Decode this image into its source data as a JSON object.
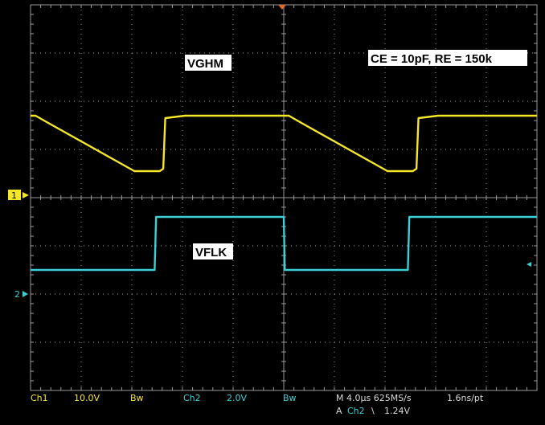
{
  "chart_data": {
    "type": "line",
    "title": "",
    "xlabel": "",
    "ylabel": "",
    "grid": true,
    "x_divisions": 10,
    "y_divisions": 8,
    "x_range_div": [
      0,
      10
    ],
    "y_range_div": [
      -4,
      4
    ],
    "annotations": {
      "vghm": "VGHM",
      "vflk": "VFLK",
      "params": "CE = 10pF, RE = 150k"
    },
    "markers": {
      "ch1": "1",
      "ch2": "2"
    },
    "series": [
      {
        "name": "VGHM",
        "color": "#f5e62a",
        "x_div": [
          0,
          0.1,
          0.35,
          2.05,
          2.55,
          2.62,
          2.66,
          3.05,
          5.0,
          5.1,
          5.35,
          7.05,
          7.55,
          7.62,
          7.66,
          8.05,
          10.0
        ],
        "y_div": [
          1.7,
          1.7,
          1.55,
          0.55,
          0.55,
          0.6,
          1.65,
          1.7,
          1.7,
          1.7,
          1.55,
          0.55,
          0.55,
          0.6,
          1.65,
          1.7,
          1.7
        ]
      },
      {
        "name": "VFLK",
        "color": "#3ad0d6",
        "x_div": [
          0,
          2.45,
          2.48,
          5.0,
          5.02,
          7.45,
          7.48,
          10.0
        ],
        "y_div": [
          -1.5,
          -1.5,
          -0.4,
          -0.4,
          -1.5,
          -1.5,
          -0.4,
          -0.4
        ]
      }
    ]
  },
  "status": {
    "ch1_label": "Ch1",
    "ch1_scale": "10.0V",
    "bw1": "Bw",
    "ch2_label": "Ch2",
    "ch2_scale": "2.0V",
    "bw2": "Bw",
    "time": "M 4.0µs 625MS/s",
    "pts": "1.6ns/pt",
    "trigger_prefix": "A",
    "trigger_ch": "Ch2",
    "trigger_slope": "\\",
    "trigger_level": "1.24V"
  },
  "colors": {
    "background": "#000000",
    "ch1": "#f5e62a",
    "ch2": "#3ad0d6",
    "grid": "#9a9a9a",
    "marker": "#f5e62a"
  }
}
